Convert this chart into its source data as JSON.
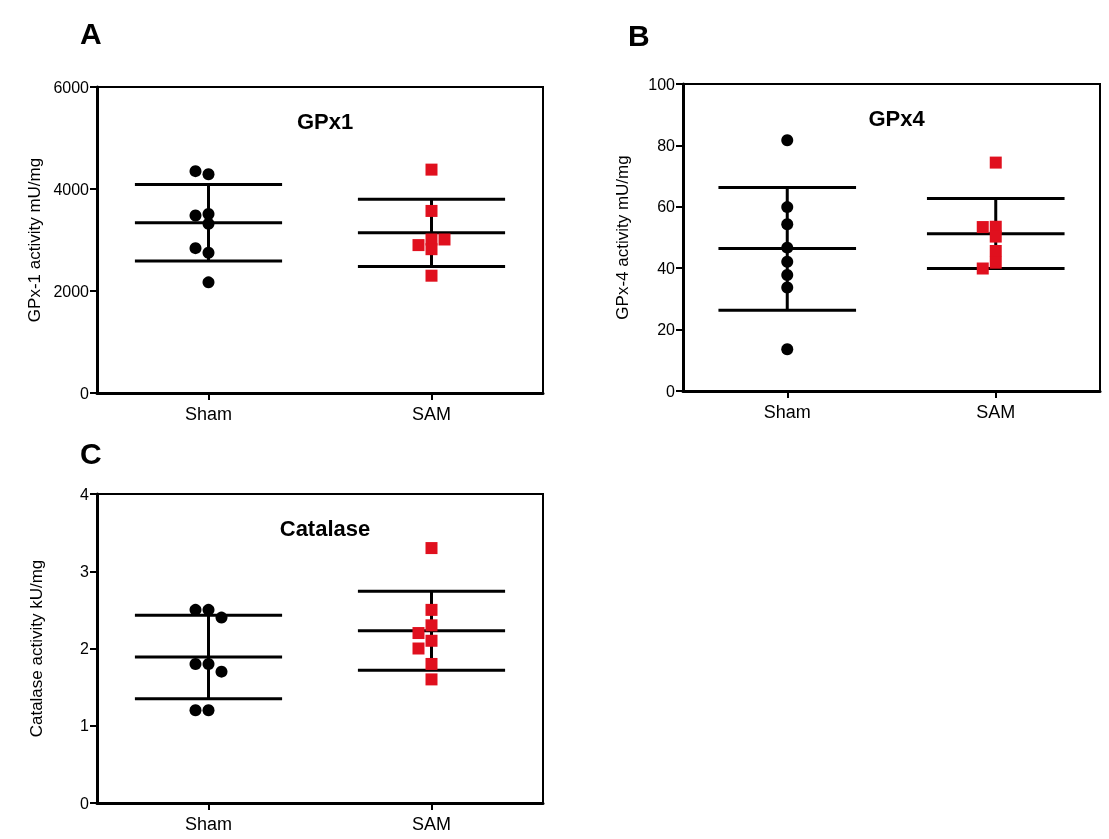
{
  "chart_data": [
    {
      "type": "scatter",
      "title": "GPx1",
      "ylabel": "GPx-1 activity mU/mg",
      "annotations": [
        "A"
      ],
      "categories": [
        "Sham",
        "SAM"
      ],
      "ylim": [
        0,
        6000
      ],
      "yticks": [
        0,
        2000,
        4000,
        6000
      ],
      "series": [
        {
          "color": "#000000",
          "marker": "circle",
          "x": [
            "Sham",
            "Sham",
            "Sham",
            "Sham",
            "Sham",
            "Sham",
            "Sham",
            "Sham"
          ],
          "values": [
            4290,
            4350,
            3510,
            3480,
            3320,
            2750,
            2840,
            2170
          ]
        },
        {
          "color": "#e0101e",
          "marker": "square",
          "x": [
            "SAM",
            "SAM",
            "SAM",
            "SAM",
            "SAM",
            "SAM",
            "SAM"
          ],
          "values": [
            4380,
            3570,
            3010,
            2900,
            3010,
            2820,
            2300
          ]
        },
        {
          "type": "box",
          "color": "#000000",
          "boxes": [
            {
              "low": 2590,
              "q1": 3340,
              "median": 3340,
              "q3": 3340,
              "high": 4090
            },
            {
              "low": 2480,
              "q1": 3140,
              "median": 3140,
              "q3": 3140,
              "high": 3800
            }
          ]
        }
      ]
    },
    {
      "type": "scatter",
      "title": "GPx4",
      "ylabel": "GPx-4 activity mU/mg",
      "annotations": [
        "B"
      ],
      "categories": [
        "Sham",
        "SAM"
      ],
      "ylim": [
        0,
        100
      ],
      "yticks": [
        0,
        20,
        40,
        60,
        80,
        100
      ],
      "series": [
        {
          "color": "#000000",
          "marker": "circle",
          "x": [
            "Sham",
            "Sham",
            "Sham",
            "Sham",
            "Sham",
            "Sham",
            "Sham",
            "Sham"
          ],
          "values": [
            81.7,
            59.9,
            54.3,
            46.7,
            42.1,
            37.8,
            33.7,
            13.6
          ]
        },
        {
          "color": "#e0101e",
          "marker": "square",
          "x": [
            "SAM",
            "SAM",
            "SAM",
            "SAM",
            "SAM",
            "SAM",
            "SAM"
          ],
          "values": [
            74.4,
            53.5,
            53.4,
            50.3,
            45.6,
            41.8,
            39.9
          ]
        },
        {
          "type": "box",
          "color": "#000000",
          "boxes": [
            {
              "low": 26.3,
              "q1": 46.4,
              "median": 46.4,
              "q3": 46.4,
              "high": 66.3
            },
            {
              "low": 39.9,
              "q1": 51.2,
              "median": 51.2,
              "q3": 51.2,
              "high": 62.7
            }
          ]
        }
      ]
    },
    {
      "type": "scatter",
      "title": "Catalase",
      "ylabel": "Catalase activity kU/mg",
      "annotations": [
        "C"
      ],
      "categories": [
        "Sham",
        "SAM"
      ],
      "ylim": [
        0,
        4
      ],
      "yticks": [
        0,
        1,
        2,
        3,
        4
      ],
      "series": [
        {
          "color": "#000000",
          "marker": "circle",
          "x": [
            "Sham",
            "Sham",
            "Sham",
            "Sham",
            "Sham",
            "Sham",
            "Sham",
            "Sham"
          ],
          "values": [
            2.5,
            2.5,
            2.4,
            1.8,
            1.8,
            1.7,
            1.2,
            1.2
          ]
        },
        {
          "color": "#e0101e",
          "marker": "square",
          "x": [
            "SAM",
            "SAM",
            "SAM",
            "SAM",
            "SAM",
            "SAM",
            "SAM",
            "SAM"
          ],
          "values": [
            3.3,
            2.5,
            2.3,
            2.2,
            2.1,
            2.0,
            1.8,
            1.6
          ]
        },
        {
          "type": "box",
          "color": "#000000",
          "boxes": [
            {
              "low": 1.35,
              "q1": 1.89,
              "median": 1.89,
              "q3": 1.89,
              "high": 2.43
            },
            {
              "low": 1.72,
              "q1": 2.23,
              "median": 2.23,
              "q3": 2.23,
              "high": 2.74
            }
          ]
        }
      ]
    }
  ]
}
